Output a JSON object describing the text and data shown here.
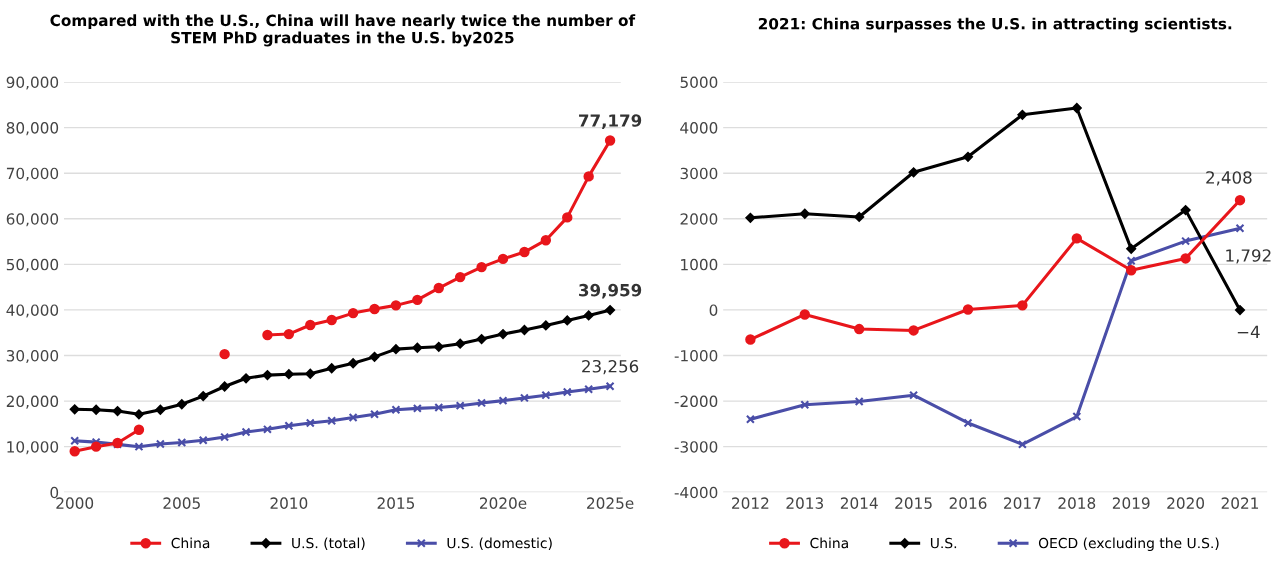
{
  "chart_data": [
    {
      "type": "line",
      "title": "Compared with the U.S., China will have nearly twice the number of\nSTEM PhD graduates in the U.S. by2025",
      "x": [
        2000,
        2001,
        2002,
        2003,
        2004,
        2005,
        2006,
        2007,
        2008,
        2009,
        2010,
        2011,
        2012,
        2013,
        2014,
        2015,
        2016,
        2017,
        2018,
        2019,
        2020,
        2021,
        2022,
        2023,
        2024,
        2025
      ],
      "series": [
        {
          "name": "China",
          "color": "#e8161b",
          "marker": "circle",
          "values": [
            9000,
            10000,
            10800,
            13700,
            null,
            null,
            null,
            30300,
            null,
            34500,
            34700,
            36700,
            37800,
            39300,
            40200,
            41000,
            42200,
            44800,
            47200,
            49400,
            51200,
            52700,
            55300,
            60300,
            69300,
            77179
          ],
          "value_labels": [
            null,
            null,
            null,
            null,
            null,
            null,
            null,
            null,
            null,
            null,
            null,
            null,
            null,
            null,
            null,
            null,
            null,
            null,
            null,
            null,
            null,
            null,
            null,
            null,
            null,
            "77,179"
          ]
        },
        {
          "name": "U.S. (total)",
          "color": "#000000",
          "marker": "diamond",
          "values": [
            18200,
            18100,
            17800,
            17100,
            18100,
            19300,
            21100,
            23200,
            25000,
            25700,
            25900,
            26000,
            27200,
            28300,
            29700,
            31400,
            31700,
            31900,
            32600,
            33600,
            34700,
            35600,
            36600,
            37700,
            38800,
            39959
          ],
          "value_labels": [
            null,
            null,
            null,
            null,
            null,
            null,
            null,
            null,
            null,
            null,
            null,
            null,
            null,
            null,
            null,
            null,
            null,
            null,
            null,
            null,
            null,
            null,
            null,
            null,
            null,
            "39,959"
          ]
        },
        {
          "name": "U.S. (domestic)",
          "color": "#4a4ea8",
          "marker": "cross",
          "values": [
            11300,
            11000,
            10500,
            10000,
            10600,
            10900,
            11400,
            12100,
            13200,
            13800,
            14600,
            15200,
            15700,
            16400,
            17100,
            18100,
            18400,
            18600,
            19000,
            19600,
            20100,
            20700,
            21300,
            22000,
            22600,
            23256
          ],
          "value_labels": [
            null,
            null,
            null,
            null,
            null,
            null,
            null,
            null,
            null,
            null,
            null,
            null,
            null,
            null,
            null,
            null,
            null,
            null,
            null,
            null,
            null,
            null,
            null,
            null,
            null,
            "23,256"
          ]
        }
      ],
      "xlim": [
        1999.5,
        2025.5
      ],
      "xticks": [
        2000,
        2005,
        2010,
        2015,
        {
          "value": 2020,
          "label": "2020e"
        },
        {
          "value": 2025,
          "label": "2025e"
        }
      ],
      "ylim": [
        0,
        90000
      ],
      "yticks": [
        {
          "value": 0,
          "label": "0"
        },
        {
          "value": 10000,
          "label": "10,000"
        },
        {
          "value": 20000,
          "label": "20,000"
        },
        {
          "value": 30000,
          "label": "30,000"
        },
        {
          "value": 40000,
          "label": "40,000"
        },
        {
          "value": 50000,
          "label": "50,000"
        },
        {
          "value": 60000,
          "label": "60,000"
        },
        {
          "value": 70000,
          "label": "70,000"
        },
        {
          "value": 80000,
          "label": "80,000"
        },
        {
          "value": 90000,
          "label": "90,000"
        }
      ],
      "grid": "y",
      "legend": "bottom",
      "line_style": "solid"
    },
    {
      "type": "line",
      "title": "2021: China surpasses the U.S. in attracting scientists.",
      "categories": [
        "2012",
        "2013",
        "2014",
        "2015",
        "2016",
        "2017",
        "2018",
        "2019",
        "2020",
        "2021"
      ],
      "series": [
        {
          "name": "China",
          "color": "#e8161b",
          "marker": "circle",
          "values": [
            -650,
            -100,
            -420,
            -450,
            10,
            100,
            1570,
            870,
            1130,
            2408
          ],
          "value_labels": [
            null,
            null,
            null,
            null,
            null,
            null,
            null,
            null,
            null,
            "2,408"
          ]
        },
        {
          "name": "U.S.",
          "color": "#000000",
          "marker": "diamond",
          "values": [
            2020,
            2110,
            2040,
            3020,
            3360,
            4280,
            4430,
            1340,
            2190,
            -4
          ],
          "value_labels": [
            null,
            null,
            null,
            null,
            null,
            null,
            null,
            null,
            null,
            "−4"
          ]
        },
        {
          "name": "OECD (excluding the U.S.)",
          "color": "#4a4ea8",
          "marker": "cross",
          "values": [
            -2400,
            -2080,
            -2010,
            -1870,
            -2480,
            -2950,
            -2340,
            1080,
            1510,
            1792
          ],
          "value_labels": [
            null,
            null,
            null,
            null,
            null,
            null,
            null,
            null,
            null,
            "1,792"
          ]
        }
      ],
      "ylim": [
        -4000,
        5000
      ],
      "yticks": [
        -4000,
        -3000,
        -2000,
        -1000,
        0,
        1000,
        2000,
        3000,
        4000,
        5000
      ],
      "grid": "y",
      "legend": "bottom",
      "line_style": "solid"
    }
  ]
}
